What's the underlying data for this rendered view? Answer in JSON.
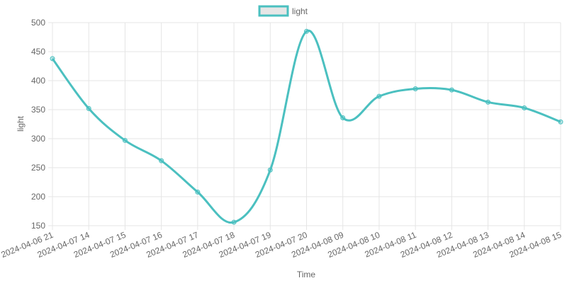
{
  "chart_data": {
    "type": "line",
    "xlabel": "Time",
    "ylabel": "light",
    "categories": [
      "2024-04-06 21",
      "2024-04-07 14",
      "2024-04-07 15",
      "2024-04-07 16",
      "2024-04-07 17",
      "2024-04-07 18",
      "2024-04-07 19",
      "2024-04-07 20",
      "2024-04-08 09",
      "2024-04-08 10",
      "2024-04-08 11",
      "2024-04-08 12",
      "2024-04-08 13",
      "2024-04-08 14",
      "2024-04-08 15"
    ],
    "series": [
      {
        "name": "light",
        "values": [
          438,
          352,
          297,
          262,
          208,
          156,
          246,
          485,
          336,
          373,
          386,
          384,
          363,
          353,
          329
        ],
        "color": "#4bc0c0",
        "fill": "#e6e6e6"
      }
    ],
    "ylim": [
      150,
      500
    ],
    "yticks": [
      150,
      200,
      250,
      300,
      350,
      400,
      450,
      500
    ],
    "legend_position": "top-center",
    "grid": true
  }
}
